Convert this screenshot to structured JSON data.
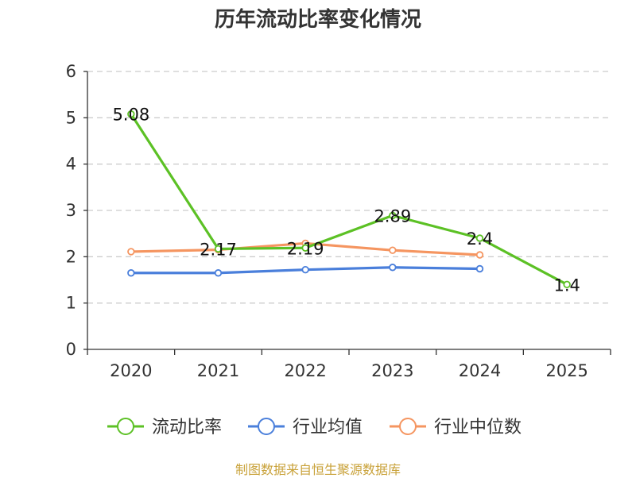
{
  "chart_data": {
    "type": "line",
    "title": "历年流动比率变化情况",
    "categories": [
      "2020",
      "2021",
      "2022",
      "2023",
      "2024",
      "2025"
    ],
    "ylim": [
      0,
      6
    ],
    "yticks": [
      0,
      1,
      2,
      3,
      4,
      5,
      6
    ],
    "grid": "horizontal dashed",
    "legend_position": "bottom",
    "series": [
      {
        "name": "流动比率",
        "color": "#5cc125",
        "values": [
          5.08,
          2.17,
          2.19,
          2.89,
          2.4,
          1.4
        ],
        "data_labels": [
          "5.08",
          "2.17",
          "2.19",
          "2.89",
          "2.4",
          "1.4"
        ]
      },
      {
        "name": "行业均值",
        "color": "#4a7fdb",
        "values": [
          1.65,
          1.65,
          1.72,
          1.77,
          1.74,
          null
        ]
      },
      {
        "name": "行业中位数",
        "color": "#f59560",
        "values": [
          2.11,
          2.15,
          2.29,
          2.14,
          2.04,
          null
        ]
      }
    ]
  },
  "footer": {
    "source": "制图数据来自恒生聚源数据库"
  }
}
